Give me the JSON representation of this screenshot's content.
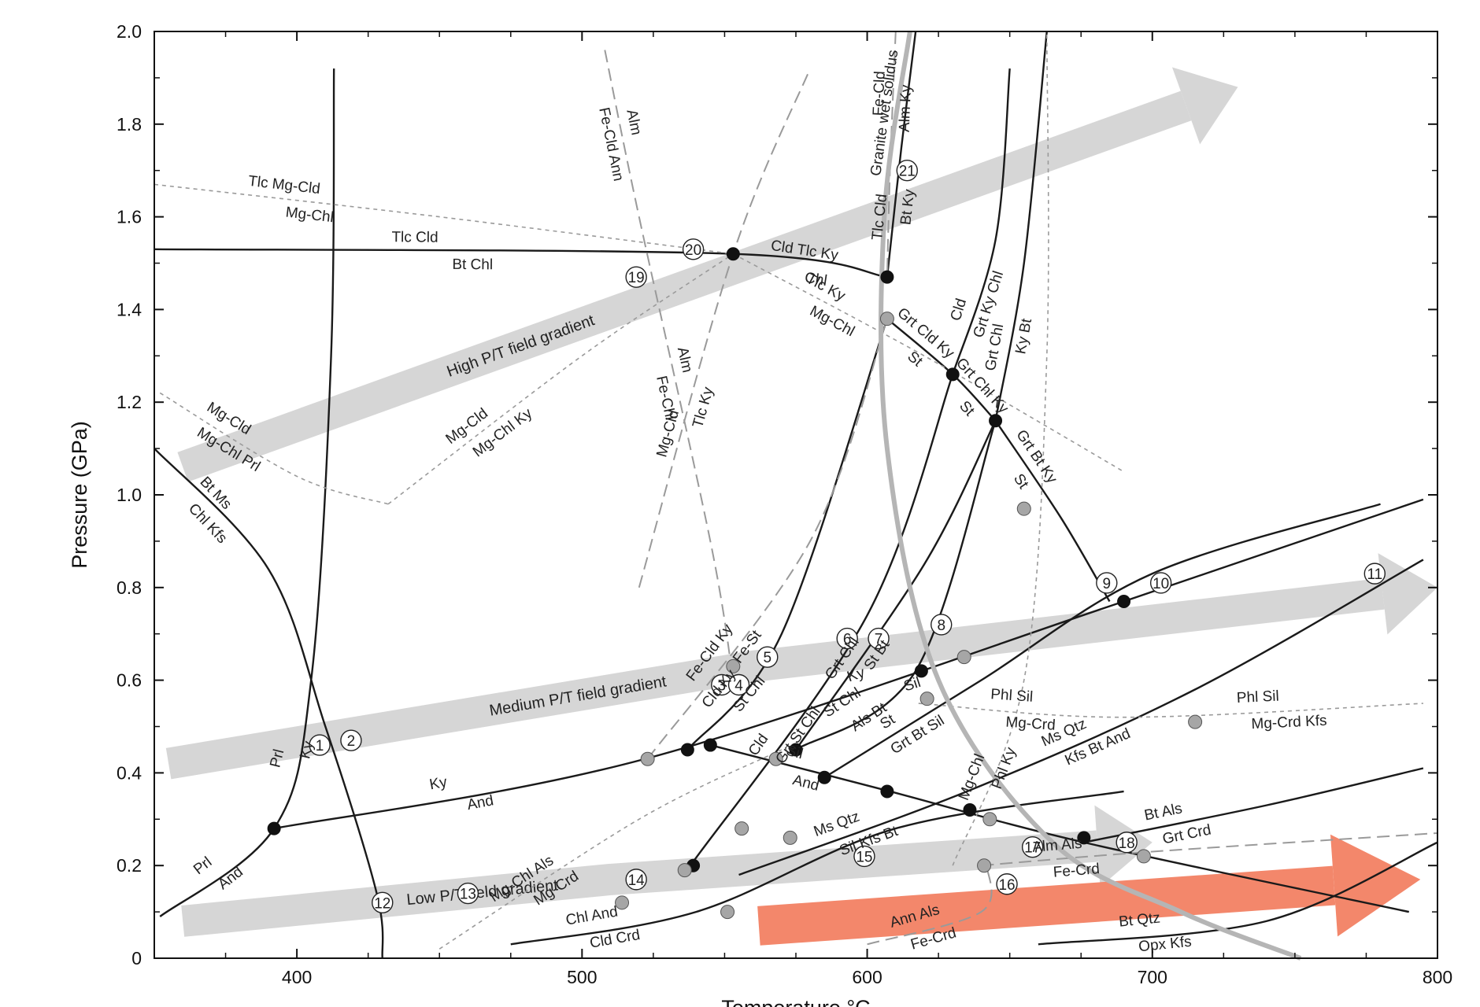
{
  "chart_data": {
    "type": "line",
    "title": "",
    "xlabel": "Temperature °C",
    "ylabel": "Pressure (GPa)",
    "xlim": [
      350,
      800
    ],
    "ylim": [
      0,
      2.0
    ],
    "x_ticks": [
      400,
      500,
      600,
      700,
      800
    ],
    "y_ticks": [
      0,
      0.2,
      0.4,
      0.6,
      0.8,
      1.0,
      1.2,
      1.4,
      1.6,
      1.8,
      2.0
    ],
    "grid": false,
    "colors": {
      "solid": "#1a1a1a",
      "dashed": "#9a9a9a",
      "gradient_arrow": "#d6d6d6",
      "solidus": "#b5b5b5",
      "red_arrow": "#f3876b",
      "grey_point": "#a6a6a6",
      "black_point": "#111111"
    },
    "reactions": [
      {
        "id": "prl-ky",
        "style": "solid",
        "points": [
          [
            352,
            0.09
          ],
          [
            392,
            0.28
          ],
          [
            405,
            0.6
          ],
          [
            412,
            1.3
          ],
          [
            413,
            1.92
          ]
        ],
        "labels": [
          "Prl",
          "And",
          "Prl",
          "Ky"
        ]
      },
      {
        "id": "ky-and",
        "style": "solid",
        "points": [
          [
            392,
            0.28
          ],
          [
            522,
            0.43
          ],
          [
            690,
            0.77
          ],
          [
            795,
            0.99
          ]
        ],
        "labels": [
          "Ky",
          "And",
          "Ky",
          "Sil"
        ]
      },
      {
        "id": "chl-kfs",
        "style": "solid",
        "points": [
          [
            350,
            1.1
          ],
          [
            390,
            0.84
          ],
          [
            410,
            0.5
          ],
          [
            428,
            0.14
          ],
          [
            430,
            0.0
          ]
        ],
        "labels": [
          "Bt Ms",
          "Chl Kfs"
        ]
      },
      {
        "id": "tlc-cld",
        "style": "solid",
        "points": [
          [
            350,
            1.53
          ],
          [
            553,
            1.52
          ],
          [
            607,
            1.47
          ]
        ],
        "labels": [
          "Tlc Cld",
          "Bt Chl",
          "Cld Tlc Ky",
          "Chl"
        ]
      },
      {
        "id": "alm-ky",
        "style": "solid",
        "points": [
          [
            607,
            1.47
          ],
          [
            612,
            1.75
          ],
          [
            617,
            2.0
          ]
        ],
        "labels": [
          "Tlc Cld",
          "Bt Ky"
        ]
      },
      {
        "id": "grt-cld-ky",
        "style": "solid",
        "points": [
          [
            607,
            1.38
          ],
          [
            630,
            1.26
          ],
          [
            645,
            1.16
          ]
        ],
        "labels": [
          "Grt Cld Ky",
          "St",
          "Grt Chl Ky",
          "St"
        ]
      },
      {
        "id": "cld-grt-ky-chl",
        "style": "solid",
        "points": [
          [
            630,
            1.26
          ],
          [
            645,
            1.55
          ],
          [
            650,
            1.92
          ]
        ],
        "labels": [
          "Cld",
          "Grt Ky Chl"
        ]
      },
      {
        "id": "grt-chl-ky-bt",
        "style": "solid",
        "points": [
          [
            645,
            1.16
          ],
          [
            655,
            1.5
          ],
          [
            663,
            2.0
          ]
        ],
        "labels": [
          "Grt Chl",
          "Ky Bt"
        ]
      },
      {
        "id": "grt-bt-ky",
        "style": "solid",
        "points": [
          [
            645,
            1.16
          ],
          [
            668,
            0.95
          ],
          [
            685,
            0.77
          ]
        ],
        "labels": [
          "Grt Bt Ky",
          "St"
        ]
      },
      {
        "id": "st-chl-grt-bt",
        "style": "solid",
        "points": [
          [
            538,
            0.2
          ],
          [
            600,
            0.74
          ],
          [
            630,
            1.26
          ]
        ],
        "labels": [
          "Cld",
          "Grt St Chl"
        ]
      },
      {
        "id": "grt-chl-st-bt",
        "style": "solid",
        "points": [
          [
            575,
            0.45
          ],
          [
            620,
            0.85
          ],
          [
            645,
            1.16
          ]
        ],
        "labels": [
          "Grt Chl",
          "St Bt"
        ]
      },
      {
        "id": "cld-ky-st-chl",
        "style": "solid",
        "points": [
          [
            537,
            0.45
          ],
          [
            570,
            0.7
          ],
          [
            607,
            1.38
          ]
        ],
        "labels": [
          "Cld Ky",
          "St Chl"
        ]
      },
      {
        "id": "st-chl-als-bt",
        "style": "solid",
        "points": [
          [
            575,
            0.45
          ],
          [
            617,
            0.62
          ],
          [
            645,
            1.16
          ]
        ],
        "labels": [
          "St Chl",
          "Als Bt"
        ]
      },
      {
        "id": "st-grt-bt-sil",
        "style": "solid",
        "points": [
          [
            585,
            0.39
          ],
          [
            640,
            0.6
          ],
          [
            700,
            0.83
          ],
          [
            780,
            0.98
          ]
        ],
        "labels": [
          "St",
          "Grt Bt Sil"
        ]
      },
      {
        "id": "ms-qtz",
        "style": "solid",
        "points": [
          [
            555,
            0.18
          ],
          [
            635,
            0.36
          ],
          [
            715,
            0.58
          ],
          [
            795,
            0.86
          ]
        ],
        "labels": [
          "Ms Qtz",
          "Sil Kfs Bt",
          "Ms Qtz",
          "Kfs Bt And"
        ]
      },
      {
        "id": "sil-and",
        "style": "solid",
        "points": [
          [
            545,
            0.46
          ],
          [
            608,
            0.36
          ],
          [
            676,
            0.25
          ],
          [
            790,
            0.1
          ]
        ],
        "labels": [
          "Sil",
          "And"
        ]
      },
      {
        "id": "bt-als-grt-crd",
        "style": "solid",
        "points": [
          [
            676,
            0.25
          ],
          [
            740,
            0.33
          ],
          [
            795,
            0.41
          ]
        ],
        "labels": [
          "Bt Als",
          "Grt Crd"
        ]
      },
      {
        "id": "bt-qtz-opx-kfs",
        "style": "solid",
        "points": [
          [
            660,
            0.03
          ],
          [
            740,
            0.08
          ],
          [
            800,
            0.25
          ]
        ],
        "labels": [
          "Bt Qtz",
          "Opx Kfs"
        ]
      },
      {
        "id": "chl-and-cld-crd",
        "style": "solid",
        "points": [
          [
            475,
            0.03
          ],
          [
            540,
            0.1
          ],
          [
            610,
            0.28
          ],
          [
            690,
            0.36
          ]
        ],
        "labels": [
          "Chl And",
          "Cld Crd"
        ]
      },
      {
        "id": "mg-cld-tlc-ky",
        "style": "dashed",
        "points": [
          [
            520,
            0.8
          ],
          [
            553,
            1.52
          ],
          [
            580,
            1.92
          ]
        ],
        "labels": [
          "Mg-Cld",
          "Tlc Ky"
        ]
      },
      {
        "id": "tlc-mgcld-mgchl",
        "style": "dotted",
        "points": [
          [
            350,
            1.67
          ],
          [
            450,
            1.6
          ],
          [
            553,
            1.52
          ]
        ],
        "labels": [
          "Tlc Mg-Cld",
          "Mg-Chl"
        ]
      },
      {
        "id": "tlc-ky-mg-chl",
        "style": "dotted",
        "points": [
          [
            553,
            1.52
          ],
          [
            620,
            1.3
          ],
          [
            690,
            1.05
          ]
        ],
        "labels": [
          "Tlc Ky",
          "Mg-Chl"
        ]
      },
      {
        "id": "mgcld-mgchl-prl",
        "style": "dotted",
        "points": [
          [
            352,
            1.22
          ],
          [
            400,
            1.04
          ],
          [
            432,
            0.98
          ]
        ],
        "labels": [
          "Mg-Cld",
          "Mg-Chl Prl"
        ]
      },
      {
        "id": "mgcld-mgchl-ky",
        "style": "dotted",
        "points": [
          [
            432,
            0.98
          ],
          [
            500,
            1.3
          ],
          [
            553,
            1.52
          ]
        ],
        "labels": [
          "Mg-Cld",
          "Mg-Chl Ky"
        ]
      },
      {
        "id": "fe-cld-alm-ky",
        "style": "dashed",
        "points": [
          [
            610,
            2.0
          ],
          [
            608,
            1.7
          ],
          [
            607,
            1.47
          ]
        ],
        "labels": [
          "Fe-Cld",
          "Alm Ky"
        ]
      },
      {
        "id": "alm-fe-cld-ann",
        "style": "dashed",
        "points": [
          [
            508,
            1.96
          ],
          [
            520,
            1.6
          ],
          [
            545,
            0.9
          ],
          [
            553,
            0.6
          ]
        ],
        "labels": [
          "Alm",
          "Fe-Cld Ann",
          "Alm",
          "Fe-Chl"
        ]
      },
      {
        "id": "fe-cld-ky-fe-st",
        "style": "dashed",
        "points": [
          [
            523,
            0.43
          ],
          [
            580,
            0.9
          ],
          [
            607,
            1.38
          ]
        ],
        "labels": [
          "Fe-Cld Ky",
          "Fe-St"
        ]
      },
      {
        "id": "mg-chl-phl-ky",
        "style": "dotted",
        "points": [
          [
            630,
            0.2
          ],
          [
            655,
            0.6
          ],
          [
            663,
            1.3
          ],
          [
            663,
            2.0
          ]
        ],
        "labels": [
          "Mg-Chl",
          "Phl Ky"
        ]
      },
      {
        "id": "phl-sil-mg-crd",
        "style": "dotted",
        "points": [
          [
            618,
            0.55
          ],
          [
            690,
            0.52
          ],
          [
            795,
            0.55
          ]
        ],
        "labels": [
          "Phl Sil",
          "Mg-Crd",
          "Phl Sil",
          "Mg-Crd Kfs"
        ]
      },
      {
        "id": "alm-als-fe-crd",
        "style": "dashed",
        "points": [
          [
            640,
            0.2
          ],
          [
            700,
            0.23
          ],
          [
            800,
            0.27
          ]
        ],
        "labels": [
          "Alm Als",
          "Fe-Crd"
        ]
      },
      {
        "id": "ann-als-fe-crd",
        "style": "dashed",
        "points": [
          [
            600,
            0.03
          ],
          [
            640,
            0.1
          ],
          [
            642,
            0.2
          ]
        ],
        "labels": [
          "Ann Als",
          "Fe-Crd"
        ]
      },
      {
        "id": "mg-chl-als-mg-crd",
        "style": "dotted",
        "points": [
          [
            450,
            0.02
          ],
          [
            520,
            0.3
          ],
          [
            570,
            0.45
          ]
        ],
        "labels": [
          "Mg-Chl Als",
          "Mg-Crd"
        ]
      },
      {
        "id": "granite-wet-solidus",
        "style": "solidus",
        "points": [
          [
            615,
            2.0
          ],
          [
            606,
            1.6
          ],
          [
            607,
            1.1
          ],
          [
            625,
            0.6
          ],
          [
            665,
            0.25
          ],
          [
            710,
            0.1
          ],
          [
            752,
            0.0
          ]
        ],
        "labels": [
          "Granite wet solidus"
        ]
      }
    ],
    "invariant_points": [
      {
        "x": 392,
        "y": 0.28,
        "fill": "black"
      },
      {
        "x": 553,
        "y": 1.52,
        "fill": "black"
      },
      {
        "x": 607,
        "y": 1.47,
        "fill": "black"
      },
      {
        "x": 630,
        "y": 1.26,
        "fill": "black"
      },
      {
        "x": 645,
        "y": 1.16,
        "fill": "black"
      },
      {
        "x": 690,
        "y": 0.77,
        "fill": "black"
      },
      {
        "x": 537,
        "y": 0.45,
        "fill": "black"
      },
      {
        "x": 545,
        "y": 0.46,
        "fill": "black"
      },
      {
        "x": 575,
        "y": 0.45,
        "fill": "black"
      },
      {
        "x": 585,
        "y": 0.39,
        "fill": "black"
      },
      {
        "x": 607,
        "y": 0.36,
        "fill": "black"
      },
      {
        "x": 636,
        "y": 0.32,
        "fill": "black"
      },
      {
        "x": 676,
        "y": 0.26,
        "fill": "black"
      },
      {
        "x": 539,
        "y": 0.2,
        "fill": "black"
      },
      {
        "x": 619,
        "y": 0.62,
        "fill": "black"
      },
      {
        "x": 607,
        "y": 1.38,
        "fill": "grey"
      },
      {
        "x": 553,
        "y": 0.63,
        "fill": "grey"
      },
      {
        "x": 523,
        "y": 0.43,
        "fill": "grey"
      },
      {
        "x": 568,
        "y": 0.43,
        "fill": "grey"
      },
      {
        "x": 556,
        "y": 0.28,
        "fill": "grey"
      },
      {
        "x": 573,
        "y": 0.26,
        "fill": "grey"
      },
      {
        "x": 536,
        "y": 0.19,
        "fill": "grey"
      },
      {
        "x": 514,
        "y": 0.12,
        "fill": "grey"
      },
      {
        "x": 551,
        "y": 0.1,
        "fill": "grey"
      },
      {
        "x": 621,
        "y": 0.56,
        "fill": "grey"
      },
      {
        "x": 634,
        "y": 0.65,
        "fill": "grey"
      },
      {
        "x": 655,
        "y": 0.97,
        "fill": "grey"
      },
      {
        "x": 715,
        "y": 0.51,
        "fill": "grey"
      },
      {
        "x": 643,
        "y": 0.3,
        "fill": "grey"
      },
      {
        "x": 641,
        "y": 0.2,
        "fill": "grey"
      },
      {
        "x": 697,
        "y": 0.22,
        "fill": "grey"
      }
    ],
    "numbered_points": [
      {
        "n": "1",
        "x": 408,
        "y": 0.46
      },
      {
        "n": "2",
        "x": 419,
        "y": 0.47
      },
      {
        "n": "3",
        "x": 549,
        "y": 0.59
      },
      {
        "n": "4",
        "x": 555,
        "y": 0.59
      },
      {
        "n": "5",
        "x": 565,
        "y": 0.65
      },
      {
        "n": "6",
        "x": 593,
        "y": 0.69
      },
      {
        "n": "7",
        "x": 604,
        "y": 0.69
      },
      {
        "n": "8",
        "x": 626,
        "y": 0.72
      },
      {
        "n": "9",
        "x": 684,
        "y": 0.81
      },
      {
        "n": "10",
        "x": 703,
        "y": 0.81
      },
      {
        "n": "11",
        "x": 778,
        "y": 0.83
      },
      {
        "n": "12",
        "x": 430,
        "y": 0.12
      },
      {
        "n": "13",
        "x": 460,
        "y": 0.14
      },
      {
        "n": "14",
        "x": 519,
        "y": 0.17
      },
      {
        "n": "15",
        "x": 599,
        "y": 0.22
      },
      {
        "n": "16",
        "x": 649,
        "y": 0.16
      },
      {
        "n": "17",
        "x": 658,
        "y": 0.24
      },
      {
        "n": "18",
        "x": 691,
        "y": 0.25
      },
      {
        "n": "19",
        "x": 519,
        "y": 1.47
      },
      {
        "n": "20",
        "x": 539,
        "y": 1.53
      },
      {
        "n": "21",
        "x": 614,
        "y": 1.7
      }
    ],
    "field_gradients": [
      {
        "label": "High P/T field gradient",
        "color": "grey",
        "points": [
          [
            360,
            1.06
          ],
          [
            730,
            1.88
          ]
        ]
      },
      {
        "label": "Medium P/T field gradient",
        "color": "grey",
        "points": [
          [
            355,
            0.42
          ],
          [
            560,
            0.63
          ],
          [
            800,
            0.8
          ]
        ]
      },
      {
        "label": "Low P/T field gradient",
        "color": "grey",
        "points": [
          [
            360,
            0.08
          ],
          [
            510,
            0.17
          ],
          [
            700,
            0.25
          ]
        ]
      },
      {
        "label": "",
        "color": "red",
        "points": [
          [
            562,
            0.07
          ],
          [
            794,
            0.17
          ]
        ]
      }
    ],
    "annotations": [
      "Granite wet solidus"
    ]
  }
}
